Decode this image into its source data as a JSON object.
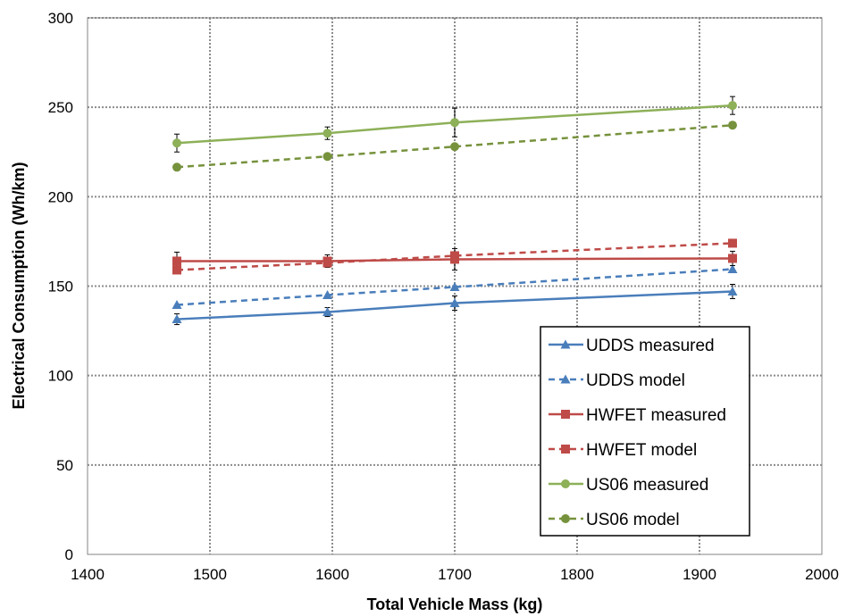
{
  "chart_data": {
    "type": "line",
    "title": "",
    "xlabel": "Total Vehicle Mass (kg)",
    "ylabel": "Electrical Consumption (Wh/km)",
    "xlim": [
      1400,
      2000
    ],
    "ylim": [
      0,
      300
    ],
    "x_ticks": [
      1400,
      1500,
      1600,
      1700,
      1800,
      1900,
      2000
    ],
    "y_ticks": [
      0,
      50,
      100,
      150,
      200,
      250,
      300
    ],
    "grid": true,
    "grid_style": "dotted",
    "legend_position": "bottom-right",
    "x": [
      1473,
      1596,
      1700,
      1927
    ],
    "series": [
      {
        "name": "UDDS measured",
        "values": [
          131.5,
          135.5,
          140.5,
          147
        ],
        "error": [
          3,
          2.5,
          4,
          4
        ],
        "color": "#4A7EBB",
        "marker": "triangle",
        "dash": false
      },
      {
        "name": "UDDS model",
        "values": [
          139.5,
          145,
          149.5,
          159.5
        ],
        "color": "#4A7EBB",
        "marker": "triangle",
        "dash": true
      },
      {
        "name": "HWFET measured",
        "values": [
          164,
          164,
          165,
          165.5
        ],
        "error": [
          5,
          3.5,
          6,
          4
        ],
        "color": "#BE4B48",
        "marker": "square",
        "dash": false
      },
      {
        "name": "HWFET model",
        "values": [
          159,
          163,
          167,
          174
        ],
        "color": "#BE4B48",
        "marker": "square",
        "dash": true
      },
      {
        "name": "US06 measured",
        "values": [
          230,
          235.5,
          241.5,
          251
        ],
        "error": [
          5,
          3.5,
          8,
          5
        ],
        "color": "#8DB058",
        "marker": "circle",
        "dash": false
      },
      {
        "name": "US06 model",
        "values": [
          216.5,
          222.5,
          228,
          240
        ],
        "color": "#76923C",
        "marker": "circle",
        "dash": true
      }
    ]
  }
}
